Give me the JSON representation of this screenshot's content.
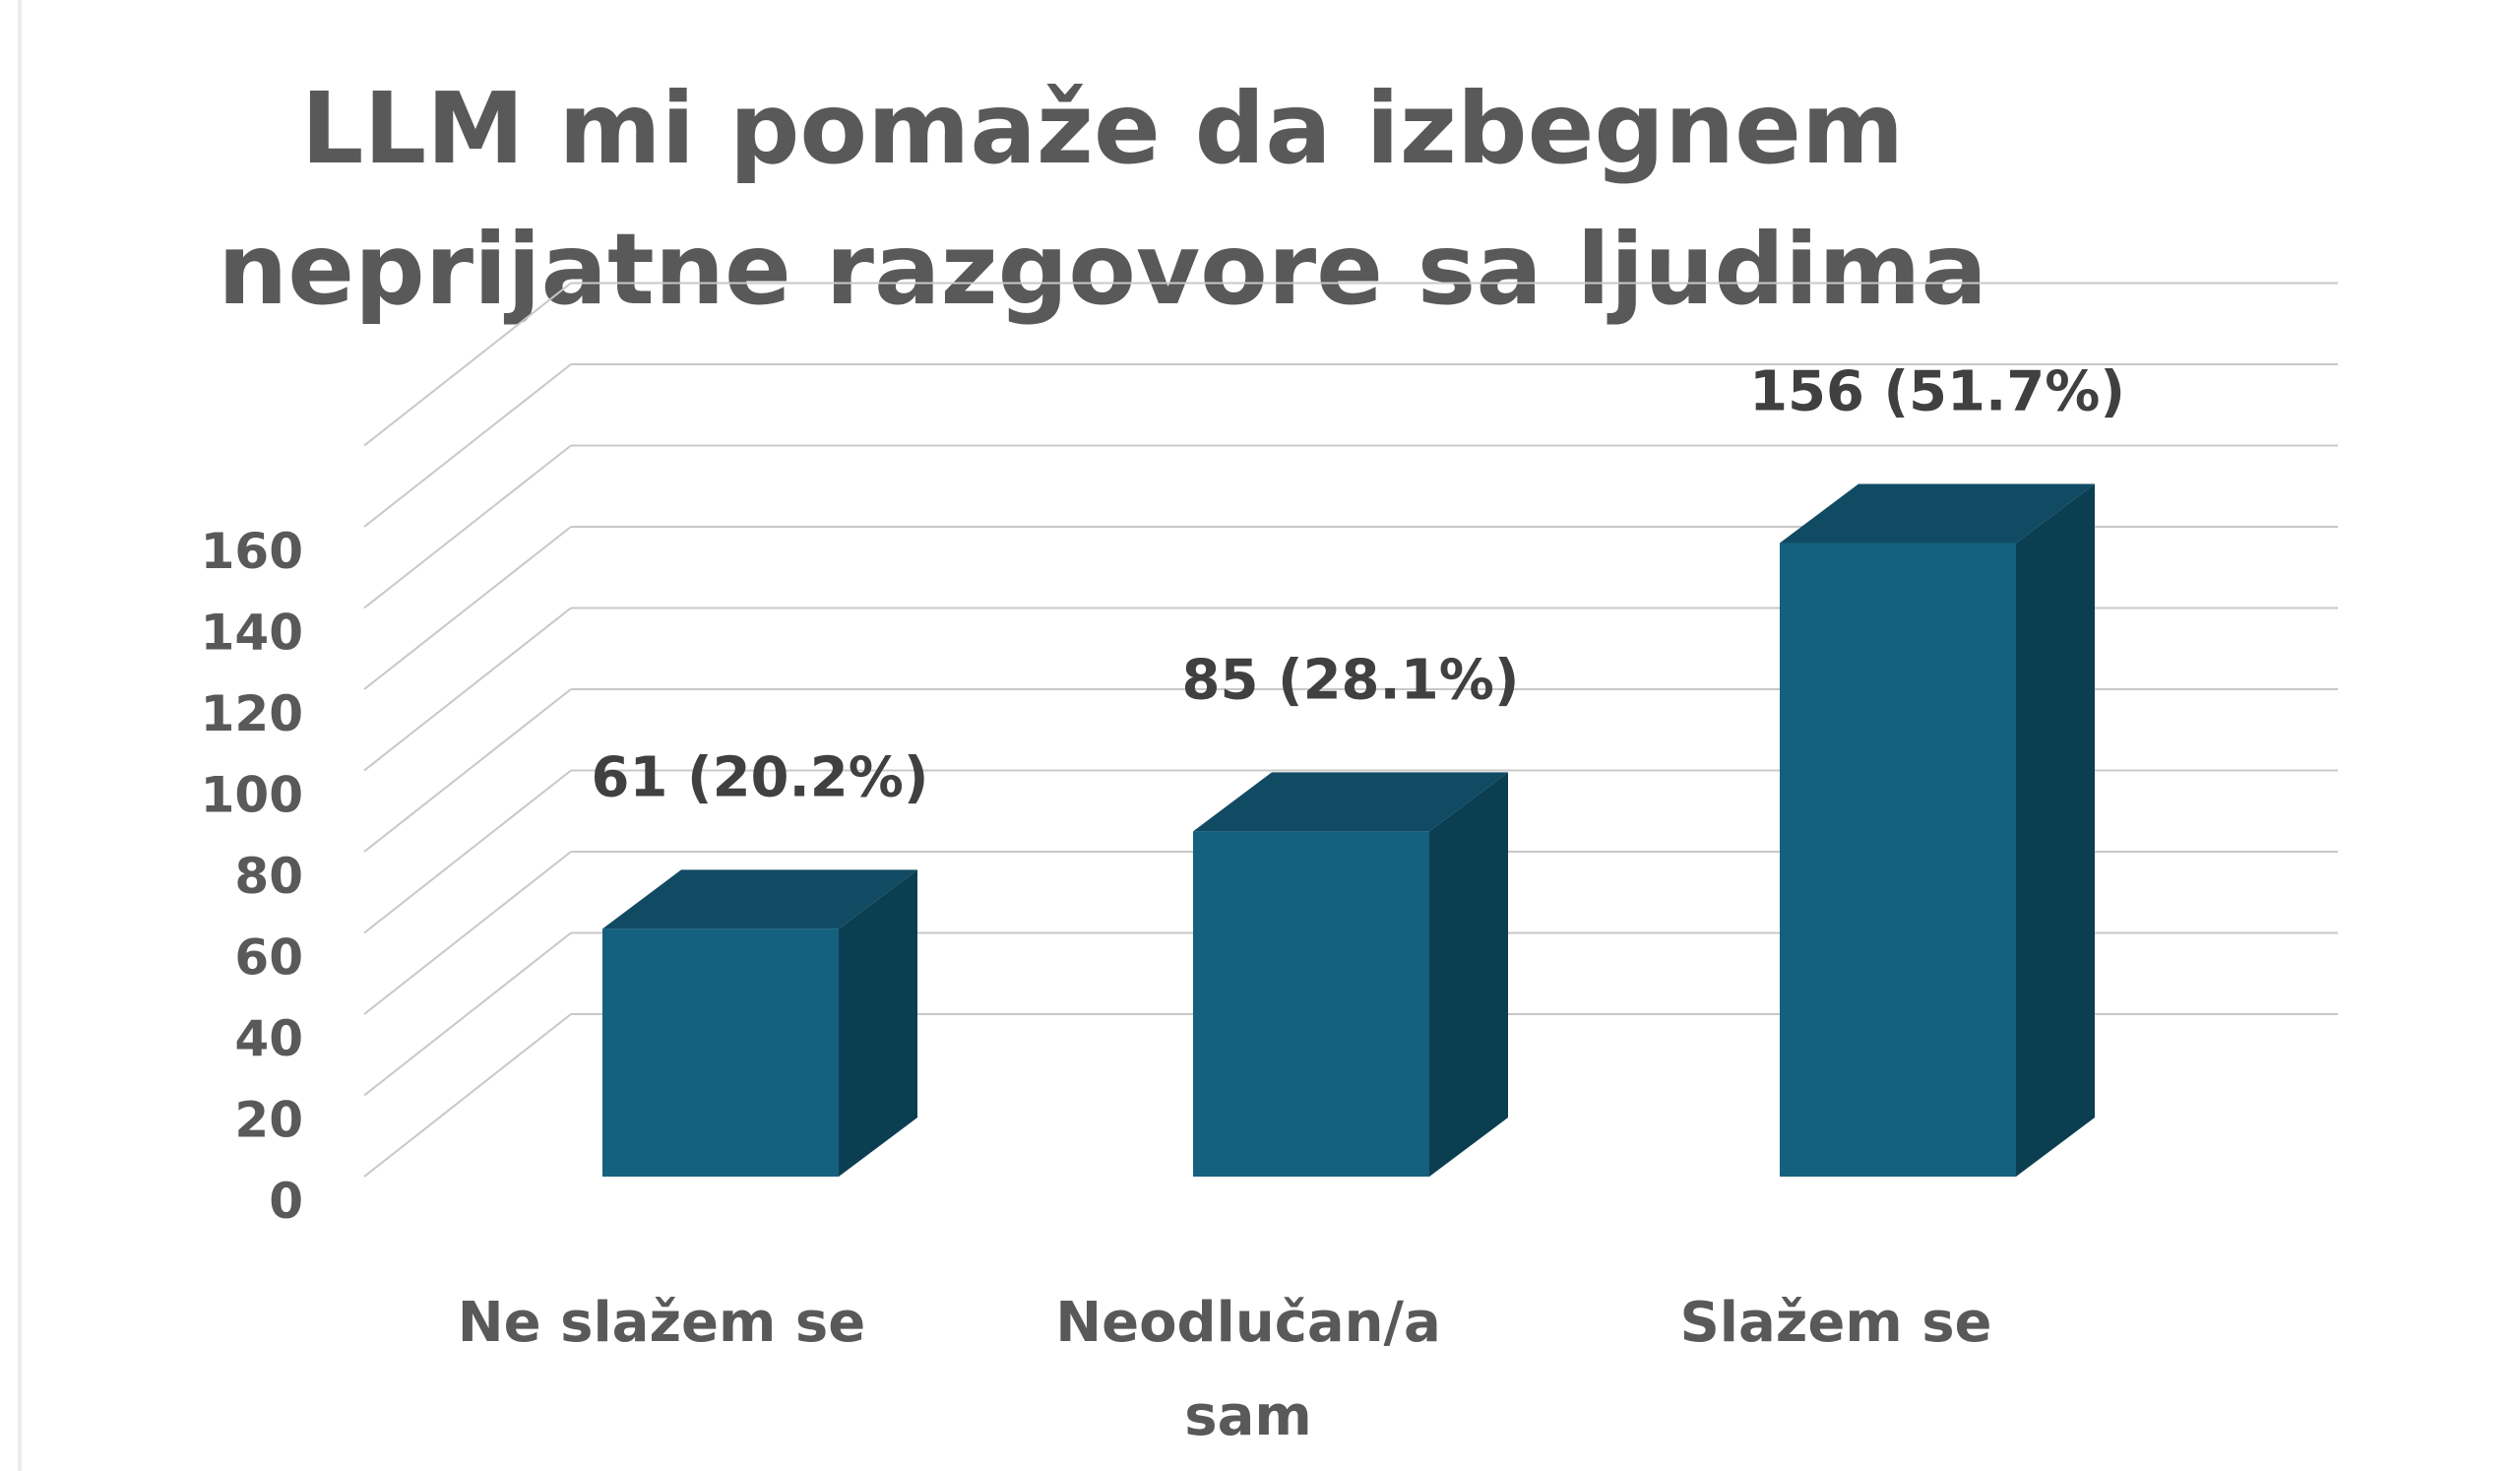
{
  "chart_data": {
    "type": "bar",
    "title_lines": [
      "LLM mi pomaže da izbegnem",
      "neprijatne razgovore sa ljudima"
    ],
    "categories": [
      [
        "Ne slažem se"
      ],
      [
        "Neodlučan/a",
        "sam"
      ],
      [
        "Slažem se"
      ]
    ],
    "values": [
      61,
      85,
      156
    ],
    "data_labels": [
      "61 (20.2%)",
      "85 (28.1%)",
      "156 (51.7%)"
    ],
    "y_ticks": [
      "0",
      "20",
      "40",
      "60",
      "80",
      "100",
      "120",
      "140",
      "160"
    ],
    "ylim": [
      0,
      160
    ],
    "grid": true,
    "legend": false,
    "colors": {
      "front": "#16607f",
      "side": "#0c3e52",
      "top": "#114b63",
      "grid": "#c8c8c8",
      "text": "#595959"
    }
  }
}
